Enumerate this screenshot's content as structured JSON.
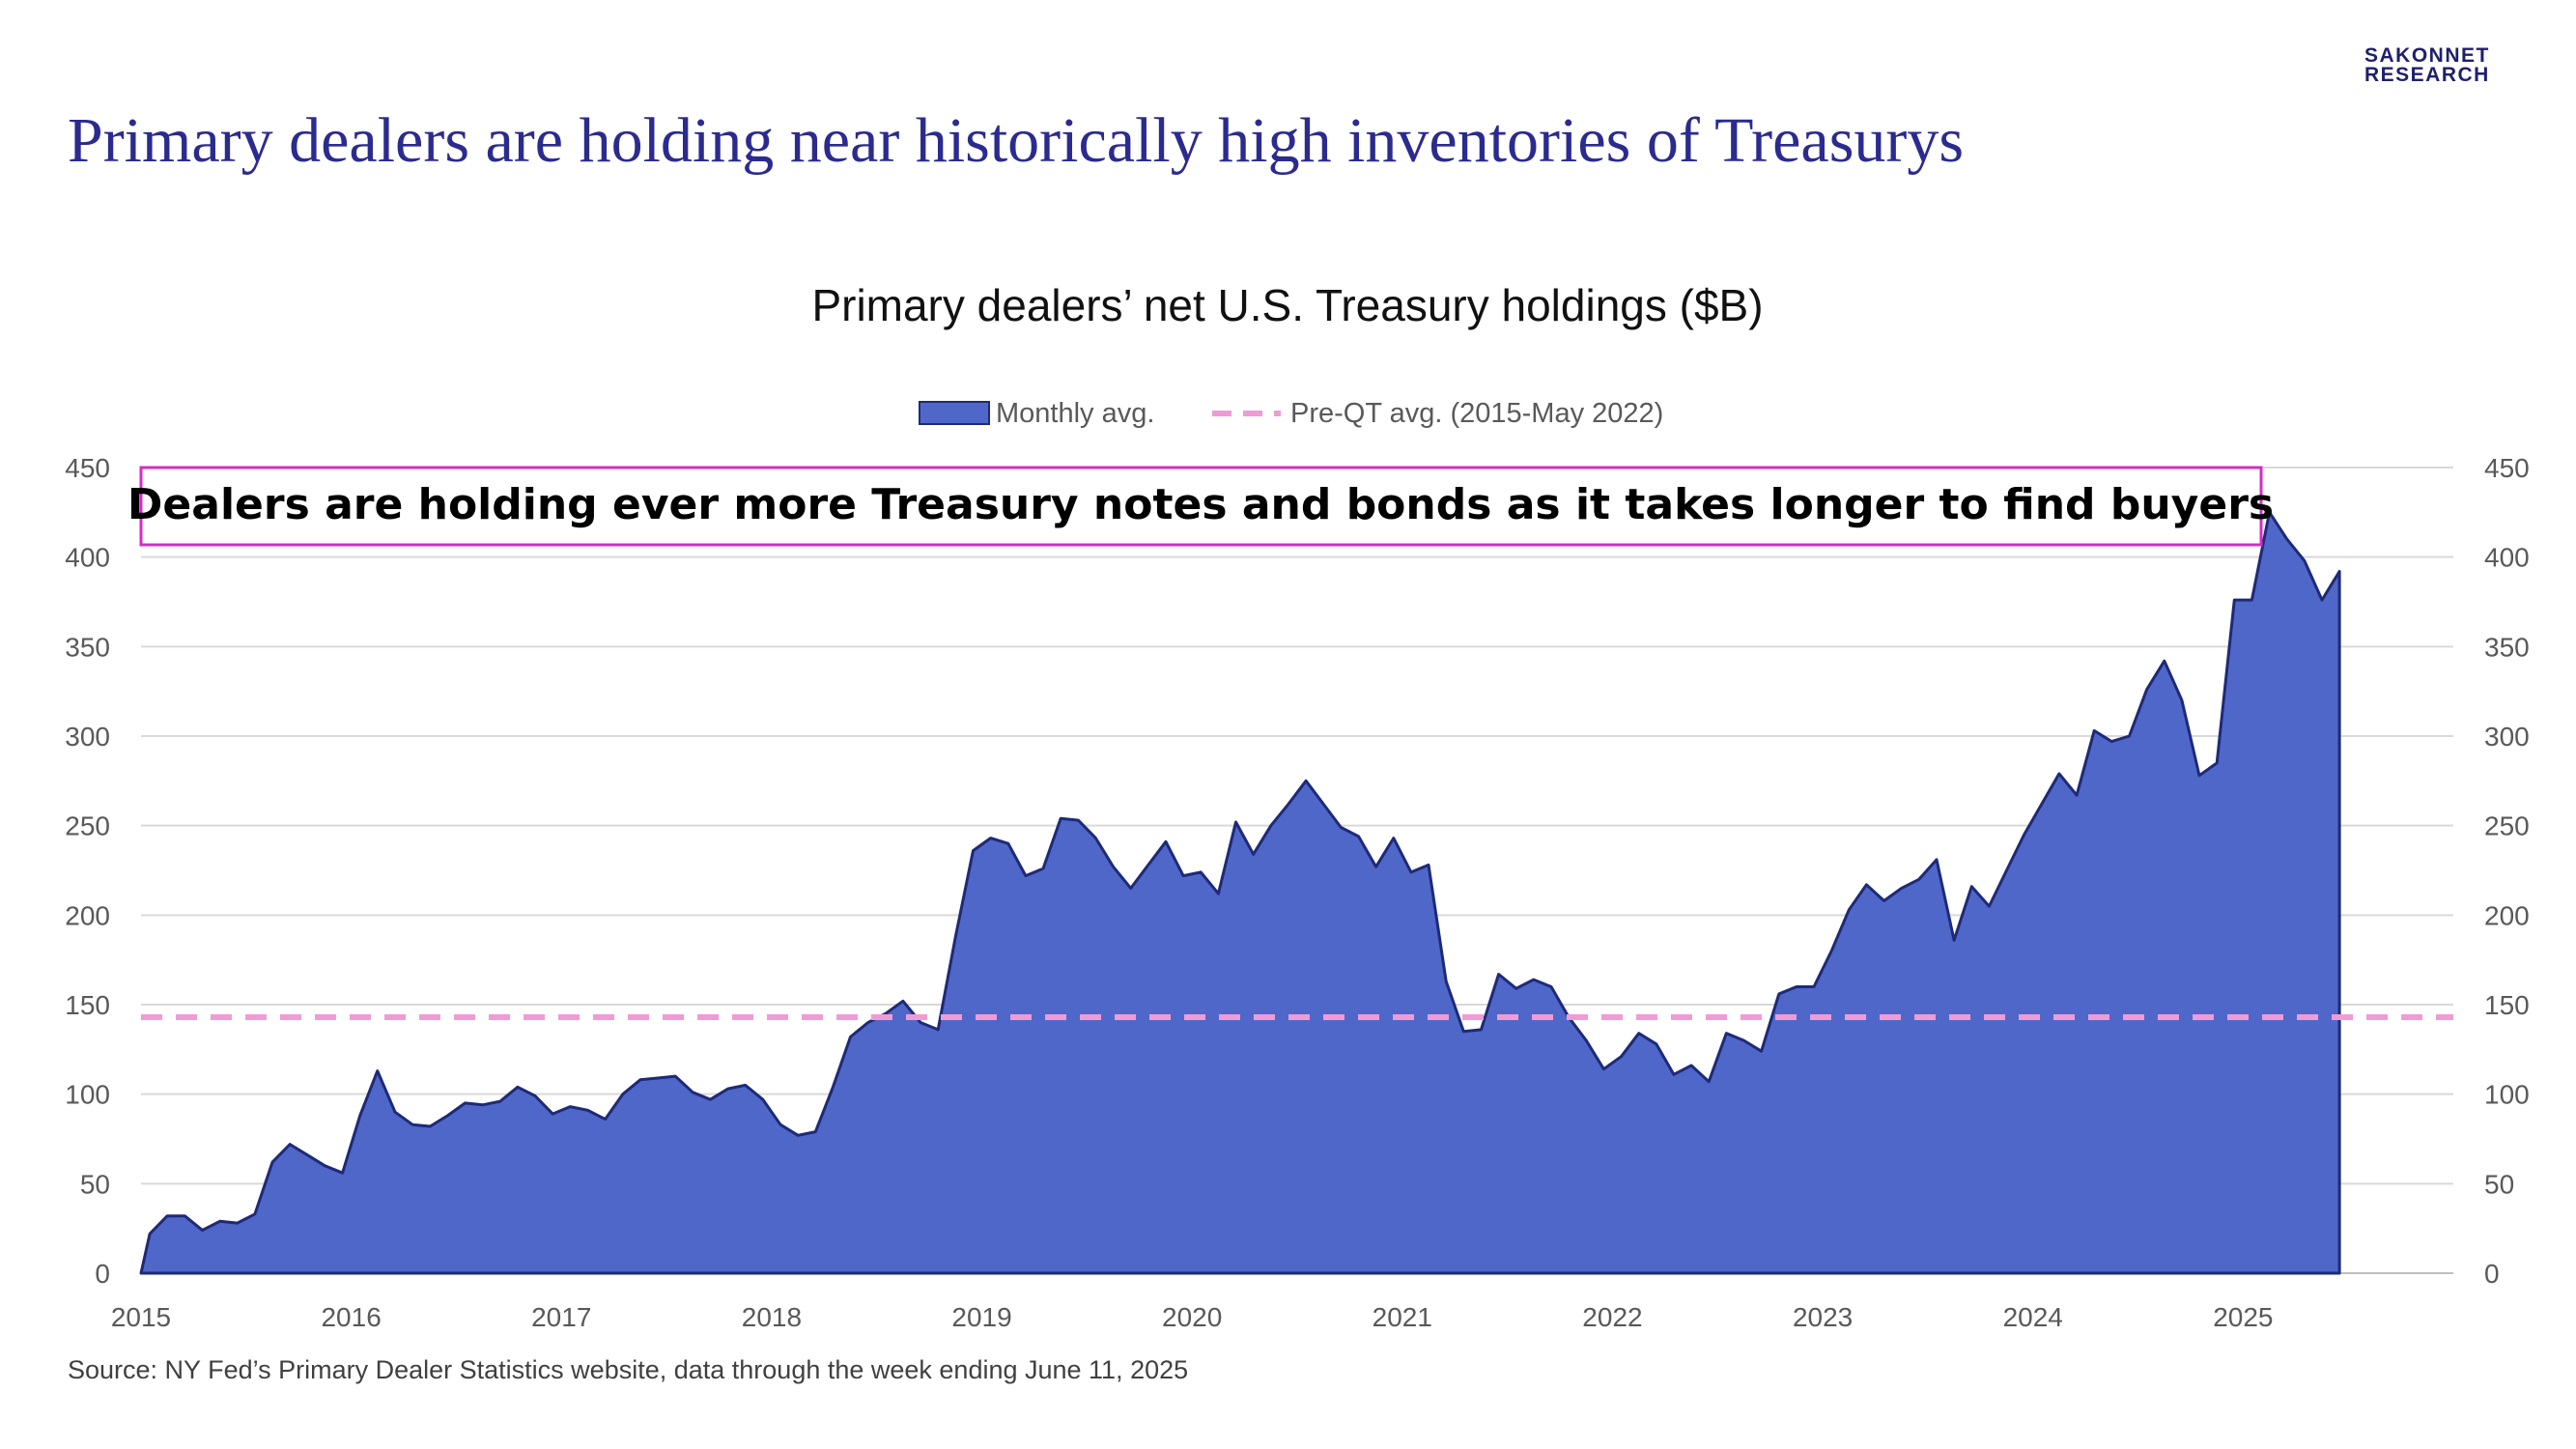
{
  "logo": {
    "line1": "SAKONNET",
    "line2": "RESEARCH"
  },
  "slide_title": "Primary dealers are holding near historically high inventories of Treasurys",
  "source": "Source: NY Fed’s Primary Dealer Statistics website, data through the week ending June 11, 2025",
  "colors": {
    "area_fill": "#4f67c8",
    "area_stroke": "#1e2a78",
    "preqt_line": "#f09bd5",
    "callout_border": "#d12fc4",
    "title": "#2b2b8f"
  },
  "chart_data": {
    "type": "area",
    "title": "Primary dealers’ net U.S. Treasury holdings ($B)",
    "xlabel": "",
    "ylabel": "",
    "x_start": "2015-01",
    "x_end": "2025-06",
    "x_ticks": [
      "2015",
      "2016",
      "2017",
      "2018",
      "2019",
      "2020",
      "2021",
      "2022",
      "2023",
      "2024",
      "2025"
    ],
    "ylim": [
      0,
      450
    ],
    "y_ticks": [
      0,
      50,
      100,
      150,
      200,
      250,
      300,
      350,
      400,
      450
    ],
    "secondary_y_axis": true,
    "grid": true,
    "legend_position": "top-center",
    "annotation": "Dealers are holding ever more Treasury notes and bonds as it takes longer to find buyers",
    "series": [
      {
        "name": "Monthly avg.",
        "kind": "area",
        "values": [
          22,
          32,
          32,
          24,
          29,
          28,
          33,
          62,
          72,
          66,
          60,
          56,
          88,
          113,
          90,
          83,
          82,
          88,
          95,
          94,
          96,
          104,
          99,
          89,
          93,
          91,
          86,
          100,
          108,
          109,
          110,
          101,
          97,
          103,
          105,
          97,
          83,
          77,
          79,
          104,
          132,
          140,
          145,
          152,
          140,
          136,
          188,
          236,
          243,
          240,
          222,
          226,
          254,
          253,
          243,
          227,
          215,
          228,
          241,
          222,
          224,
          212,
          252,
          234,
          250,
          262,
          275,
          262,
          249,
          244,
          227,
          243,
          224,
          228,
          163,
          135,
          136,
          167,
          159,
          164,
          160,
          143,
          130,
          114,
          121,
          134,
          128,
          111,
          116,
          107,
          134,
          130,
          124,
          156,
          160,
          160,
          180,
          203,
          217,
          208,
          215,
          220,
          231,
          186,
          216,
          205,
          225,
          245,
          262,
          279,
          267,
          303,
          297,
          300,
          326,
          342,
          320,
          278,
          285,
          376,
          376,
          425,
          410,
          398,
          376,
          392
        ]
      },
      {
        "name": "Pre-QT avg. (2015-May 2022)",
        "kind": "dashed-line",
        "value": 143
      }
    ]
  }
}
